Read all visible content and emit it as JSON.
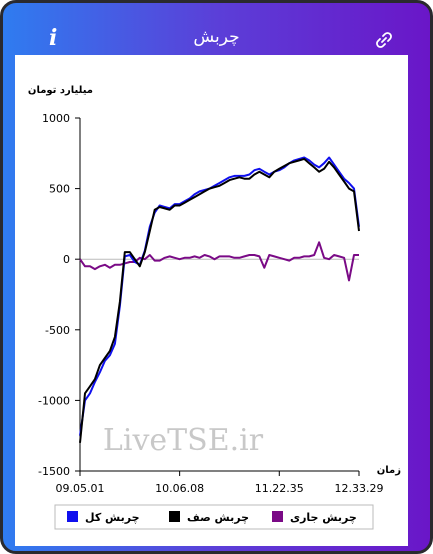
{
  "header": {
    "title": "چربش"
  },
  "chart_data": {
    "type": "line",
    "y_label": "میلیارد تومان",
    "x_label": "زمان",
    "watermark": "LiveTSE.ir",
    "categories": [
      "09.05.01",
      null,
      null,
      null,
      null,
      null,
      null,
      null,
      null,
      null,
      null,
      null,
      null,
      null,
      null,
      null,
      null,
      null,
      null,
      null,
      "10.06.08",
      null,
      null,
      null,
      null,
      null,
      null,
      null,
      null,
      null,
      null,
      null,
      null,
      null,
      null,
      null,
      null,
      null,
      null,
      null,
      "11.22.35",
      null,
      null,
      null,
      null,
      null,
      null,
      null,
      null,
      null,
      null,
      null,
      null,
      null,
      null,
      null,
      "12.33.29"
    ],
    "ylim": [
      -1500,
      1000
    ],
    "yticks": [
      -1500,
      -1000,
      -500,
      0,
      500,
      1000
    ],
    "series": [
      {
        "name": "چربش کل",
        "color": "#1010ee",
        "values": [
          -1250,
          -1000,
          -950,
          -870,
          -800,
          -720,
          -680,
          -600,
          -330,
          20,
          30,
          -20,
          -40,
          60,
          230,
          330,
          380,
          370,
          360,
          390,
          390,
          410,
          430,
          460,
          480,
          490,
          500,
          520,
          540,
          560,
          580,
          590,
          590,
          590,
          600,
          630,
          640,
          620,
          600,
          620,
          630,
          650,
          680,
          700,
          710,
          720,
          700,
          670,
          650,
          680,
          720,
          670,
          620,
          570,
          540,
          500,
          230
        ]
      },
      {
        "name": "چربش صف",
        "color": "#000000",
        "values": [
          -1300,
          -950,
          -900,
          -850,
          -750,
          -700,
          -650,
          -550,
          -300,
          50,
          50,
          0,
          -50,
          50,
          200,
          350,
          370,
          360,
          350,
          380,
          380,
          400,
          420,
          440,
          460,
          480,
          500,
          510,
          520,
          540,
          560,
          570,
          580,
          570,
          570,
          600,
          620,
          600,
          580,
          620,
          640,
          660,
          680,
          690,
          700,
          710,
          680,
          650,
          620,
          640,
          690,
          650,
          600,
          550,
          500,
          480,
          200
        ]
      },
      {
        "name": "چربش جاری",
        "color": "#7a0a86",
        "values": [
          0,
          -50,
          -50,
          -70,
          -50,
          -40,
          -60,
          -40,
          -40,
          -30,
          -20,
          -20,
          10,
          0,
          30,
          -10,
          -10,
          10,
          20,
          10,
          0,
          10,
          10,
          20,
          10,
          30,
          20,
          0,
          20,
          20,
          20,
          10,
          10,
          20,
          30,
          30,
          20,
          -60,
          30,
          20,
          10,
          0,
          -10,
          10,
          10,
          20,
          20,
          30,
          120,
          10,
          0,
          30,
          20,
          10,
          -150,
          30,
          30
        ]
      }
    ]
  }
}
